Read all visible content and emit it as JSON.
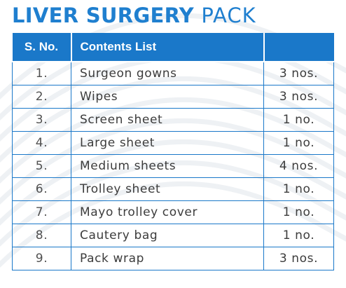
{
  "title": {
    "bold_part": "LIVER SURGERY",
    "light_part": "PACK"
  },
  "table": {
    "headers": {
      "serial": "S. No.",
      "item": "Contents List",
      "quantity": ""
    },
    "rows": [
      {
        "serial": "1.",
        "item": "Surgeon gowns",
        "quantity": "3 nos."
      },
      {
        "serial": "2.",
        "item": "Wipes",
        "quantity": "3 nos."
      },
      {
        "serial": "3.",
        "item": "Screen sheet",
        "quantity": "1 no."
      },
      {
        "serial": "4.",
        "item": "Large sheet",
        "quantity": "1 no."
      },
      {
        "serial": "5.",
        "item": "Medium sheets",
        "quantity": "4 nos."
      },
      {
        "serial": "6.",
        "item": "Trolley sheet",
        "quantity": "1 no."
      },
      {
        "serial": "7.",
        "item": "Mayo trolley cover",
        "quantity": "1 no."
      },
      {
        "serial": "8.",
        "item": "Cautery bag",
        "quantity": "1 no."
      },
      {
        "serial": "9.",
        "item": "Pack wrap",
        "quantity": "3 nos."
      }
    ]
  },
  "colors": {
    "accent": "#1a78c9",
    "title": "#1f7fcf",
    "text": "#3c3c3c"
  }
}
